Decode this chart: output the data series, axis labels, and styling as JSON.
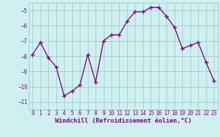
{
  "x": [
    0,
    1,
    2,
    3,
    4,
    5,
    6,
    7,
    8,
    9,
    10,
    11,
    12,
    13,
    14,
    15,
    16,
    17,
    18,
    19,
    20,
    21,
    22,
    23
  ],
  "y": [
    -7.9,
    -7.1,
    -8.1,
    -8.7,
    -10.6,
    -10.3,
    -9.9,
    -7.9,
    -9.7,
    -7.0,
    -6.6,
    -6.6,
    -5.7,
    -5.1,
    -5.1,
    -4.8,
    -4.8,
    -5.4,
    -6.1,
    -7.5,
    -7.3,
    -7.1,
    -8.4,
    -9.6
  ],
  "line_color": "#800080",
  "marker": "+",
  "markersize": 4,
  "markeredgewidth": 1.0,
  "linewidth": 1.0,
  "xlabel": "Windchill (Refroidissement éolien,°C)",
  "xlabel_fontsize": 6.5,
  "ylim": [
    -11.5,
    -4.5
  ],
  "xlim": [
    -0.5,
    23.5
  ],
  "yticks": [
    -11,
    -10,
    -9,
    -8,
    -7,
    -6,
    -5
  ],
  "xticks": [
    0,
    1,
    2,
    3,
    4,
    5,
    6,
    7,
    8,
    9,
    10,
    11,
    12,
    13,
    14,
    15,
    16,
    17,
    18,
    19,
    20,
    21,
    22,
    23
  ],
  "bg_color": "#cff0f0",
  "grid_color": "#aacece",
  "tick_fontsize": 5.5
}
